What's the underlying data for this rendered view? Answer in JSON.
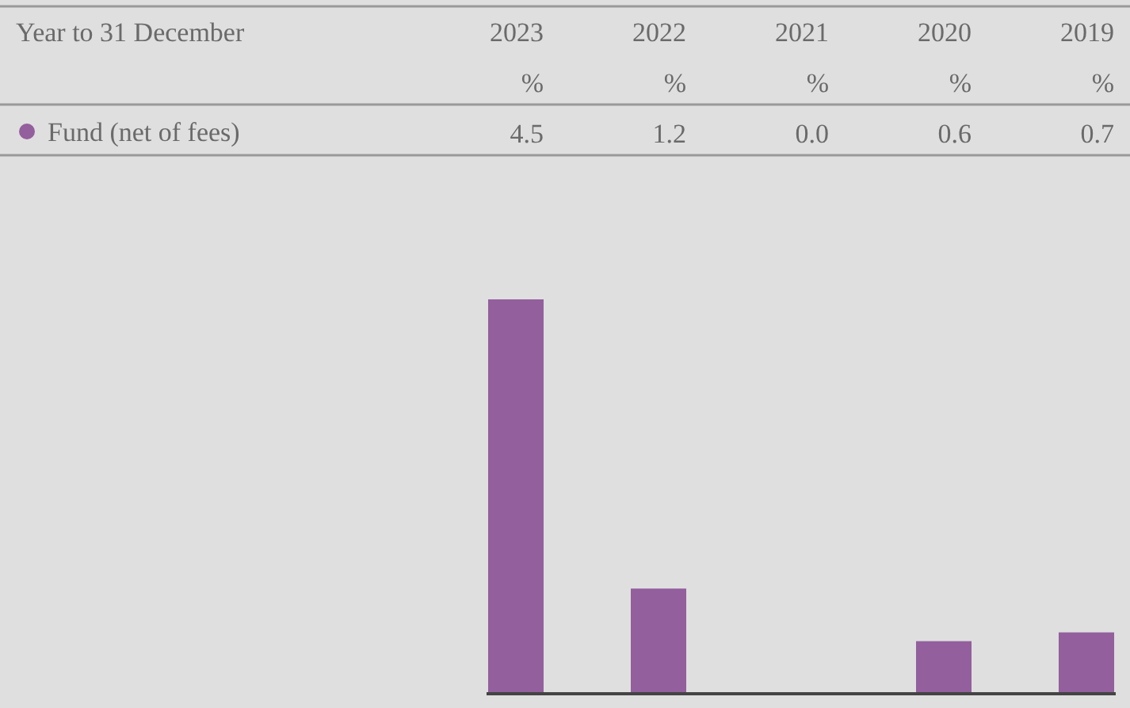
{
  "chart_data": {
    "type": "bar",
    "title": "Year to 31 December",
    "ylabel": "%",
    "categories": [
      "2023",
      "2022",
      "2021",
      "2020",
      "2019"
    ],
    "series": [
      {
        "name": "Fund (net of fees)",
        "color": "#935f9d",
        "values": [
          4.5,
          1.2,
          0.0,
          0.6,
          0.7
        ],
        "value_labels": [
          "4.5",
          "1.2",
          "0.0",
          "0.6",
          "0.7"
        ]
      }
    ],
    "legend": "top left"
  }
}
